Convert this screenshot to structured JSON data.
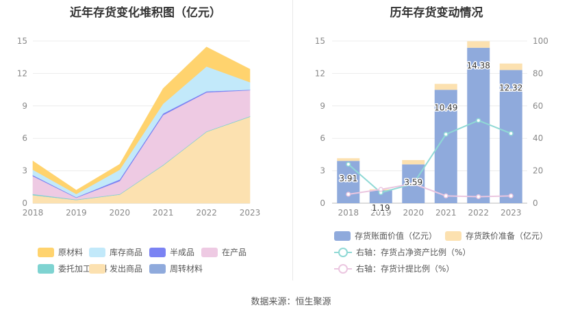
{
  "source_text": "数据来源：恒生聚源",
  "chart_data": [
    {
      "type": "area",
      "title": "近年存货变化堆积图（亿元）",
      "stacked": true,
      "categories": [
        "2018",
        "2019",
        "2020",
        "2021",
        "2022",
        "2023"
      ],
      "ylim": [
        0,
        15
      ],
      "yticks": [
        "0",
        "3",
        "6",
        "9",
        "12",
        "15"
      ],
      "grid": true,
      "legend_position": "bottom",
      "series": [
        {
          "name": "发出商品",
          "color": "#FCE1B0",
          "values": [
            0.75,
            0.3,
            0.8,
            3.5,
            6.6,
            8.0
          ]
        },
        {
          "name": "周转材料",
          "color": "#8FAADC",
          "values": [
            0.0,
            0.0,
            0.0,
            0.0,
            0.0,
            0.0
          ]
        },
        {
          "name": "委托加工材料",
          "color": "#7ED3D1",
          "values": [
            0.1,
            0.05,
            0.05,
            0.05,
            0.05,
            0.05
          ]
        },
        {
          "name": "在产品",
          "color": "#EECAE3",
          "values": [
            1.65,
            0.15,
            1.2,
            4.6,
            3.6,
            2.4
          ]
        },
        {
          "name": "半成品",
          "color": "#7B83F3",
          "values": [
            0.1,
            0.05,
            0.15,
            0.15,
            0.1,
            0.05
          ]
        },
        {
          "name": "库存商品",
          "color": "#C2E9FA",
          "values": [
            0.5,
            0.3,
            0.9,
            0.9,
            2.3,
            0.7
          ]
        },
        {
          "name": "原材料",
          "color": "#FFD36E",
          "values": [
            0.8,
            0.35,
            0.5,
            1.4,
            1.8,
            1.2
          ]
        }
      ],
      "legend_rows": [
        [
          "原材料",
          "库存商品",
          "半成品",
          "在产品"
        ],
        [
          "委托加工材料",
          "发出商品",
          "周转材料"
        ]
      ]
    },
    {
      "type": "bar",
      "title": "历年存货变动情况",
      "stacked": true,
      "categories": [
        "2018",
        "2019",
        "2020",
        "2021",
        "2022",
        "2023"
      ],
      "ylim": [
        0,
        15
      ],
      "yticks": [
        "0",
        "3",
        "6",
        "9",
        "12",
        "15"
      ],
      "y2lim": [
        0,
        100
      ],
      "y2ticks": [
        "0",
        "20",
        "40",
        "60",
        "80",
        "100"
      ],
      "grid": true,
      "legend_position": "bottom",
      "series": [
        {
          "name": "存货账面价值（亿元）",
          "color": "#8FAADC",
          "values": [
            3.91,
            1.19,
            3.59,
            10.49,
            14.38,
            12.32
          ],
          "labels": [
            "3.91",
            "1.19",
            "3.59",
            "10.49",
            "14.38",
            "12.32"
          ]
        },
        {
          "name": "存货跌价准备（亿元）",
          "color": "#FCE1B0",
          "values": [
            0.25,
            0.1,
            0.4,
            0.55,
            0.6,
            0.6
          ]
        }
      ],
      "lines": [
        {
          "name": "右轴：存货占净资产比例（%）",
          "axis": "right",
          "color": "#8FD9D5",
          "values": [
            24.0,
            6.5,
            12.0,
            42.5,
            51.0,
            43.0
          ]
        },
        {
          "name": "右轴：存货计提比例（%）",
          "axis": "right",
          "color": "#EBC6E0",
          "values": [
            5.5,
            8.5,
            12.0,
            4.5,
            4.0,
            4.5
          ]
        }
      ]
    }
  ]
}
